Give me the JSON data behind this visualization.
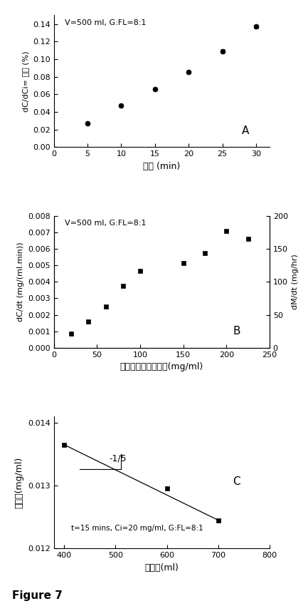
{
  "panel_A": {
    "x": [
      5,
      10,
      15,
      20,
      25,
      30
    ],
    "y": [
      0.027,
      0.047,
      0.066,
      0.085,
      0.109,
      0.137
    ],
    "yerr": [
      0.0,
      0.0,
      0.0,
      0.0,
      0.002,
      0.002
    ],
    "has_error": [
      false,
      false,
      false,
      false,
      true,
      true
    ],
    "xlabel": "時間 (min)",
    "ylabel": "dC/dCi= 収率 (%)",
    "xlim": [
      0,
      32
    ],
    "ylim": [
      0.0,
      0.15
    ],
    "yticks": [
      0.0,
      0.02,
      0.04,
      0.06,
      0.08,
      0.1,
      0.12,
      0.14
    ],
    "xticks": [
      0,
      5,
      10,
      15,
      20,
      25,
      30
    ],
    "annotation": "V=500 ml, G:FL=8:1",
    "label": "A"
  },
  "panel_B": {
    "x": [
      20,
      40,
      60,
      80,
      100,
      150,
      175,
      200,
      225
    ],
    "y": [
      0.00085,
      0.0016,
      0.0025,
      0.00375,
      0.00465,
      0.00515,
      0.00575,
      0.0071,
      0.0066
    ],
    "xlabel": "グラファイト濃度　(mg/ml)",
    "ylabel_left": "dC/dt (mg/(ml.min))",
    "ylabel_right": "dM/dt (mg/hr)",
    "xlim": [
      0,
      250
    ],
    "ylim_left": [
      0.0,
      0.008
    ],
    "ylim_right": [
      0,
      200
    ],
    "yticks_left": [
      0.0,
      0.001,
      0.002,
      0.003,
      0.004,
      0.005,
      0.006,
      0.007,
      0.008
    ],
    "yticks_right": [
      0,
      50,
      100,
      150,
      200
    ],
    "xticks": [
      0,
      50,
      100,
      150,
      200,
      250
    ],
    "annotation": "V=500 ml, G:FL=8:1",
    "label": "B"
  },
  "panel_C": {
    "x": [
      400,
      600,
      700
    ],
    "y": [
      0.01365,
      0.01295,
      0.01245
    ],
    "line_x": [
      400,
      700
    ],
    "line_y": [
      0.01365,
      0.01245
    ],
    "xlabel": "容量　(ml)",
    "ylabel": "濃度　(mg/ml)",
    "xlim": [
      380,
      800
    ],
    "ylim": [
      0.012,
      0.0141
    ],
    "yticks": [
      0.012,
      0.013,
      0.014
    ],
    "xticks": [
      400,
      500,
      600,
      700,
      800
    ],
    "annotation": "t=15 mins, Ci=20 mg/ml, G:FL=8:1",
    "slope_label": "-1/5",
    "label": "C",
    "triangle_x1": 430,
    "triangle_x2": 510,
    "triangle_y_top": 0.0135,
    "triangle_y_bot": 0.01326
  },
  "figure_label": "Figure 7",
  "font_color": "#000000",
  "bg_color": "#ffffff"
}
